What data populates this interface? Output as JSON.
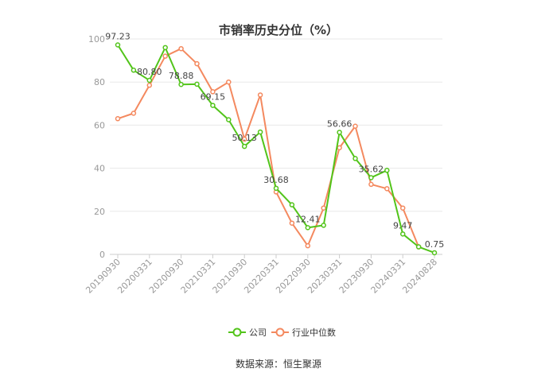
{
  "chart_data": {
    "type": "line",
    "title": "市销率历史分位（%）",
    "ylim": [
      0,
      100
    ],
    "yticks": [
      "0",
      "20",
      "40",
      "60",
      "80",
      "100"
    ],
    "x": [
      "20190930",
      "20191231",
      "20200331",
      "20200630",
      "20200930",
      "20201231",
      "20210331",
      "20210630",
      "20210930",
      "20211231",
      "20220331",
      "20220630",
      "20220930",
      "20221231",
      "20230331",
      "20230630",
      "20230930",
      "20231231",
      "20240331",
      "20240630",
      "20240828"
    ],
    "xticks": [
      "20190930",
      "20200331",
      "20200930",
      "20210331",
      "20210930",
      "20220331",
      "20220930",
      "20230331",
      "20230930",
      "20240331",
      "20240828"
    ],
    "series": [
      {
        "name": "公司",
        "color": "#52c41a",
        "values": [
          97.23,
          85.5,
          80.8,
          96.0,
          78.88,
          79.0,
          69.15,
          62.5,
          50.13,
          56.8,
          30.68,
          23.0,
          12.41,
          13.5,
          56.66,
          44.5,
          35.62,
          39.0,
          9.47,
          3.5,
          0.75
        ],
        "labels": {
          "0": "97.23",
          "2": "80.80",
          "4": "78.88",
          "6": "69.15",
          "8": "50.13",
          "10": "30.68",
          "12": "12.41",
          "14": "56.66",
          "16": "35.62",
          "18": "9.47",
          "20": "0.75"
        }
      },
      {
        "name": "行业中位数",
        "color": "#f4895f",
        "values": [
          63.0,
          65.5,
          78.5,
          92.0,
          95.5,
          88.5,
          75.5,
          80.0,
          53.5,
          74.0,
          29.0,
          14.5,
          4.0,
          21.5,
          49.5,
          59.5,
          32.5,
          30.5,
          21.5,
          3.5,
          null
        ]
      }
    ],
    "legend_position": "bottom",
    "grid": true
  },
  "legend": {
    "company": "公司",
    "industry": "行业中位数"
  },
  "source_text": "数据来源：恒生聚源"
}
